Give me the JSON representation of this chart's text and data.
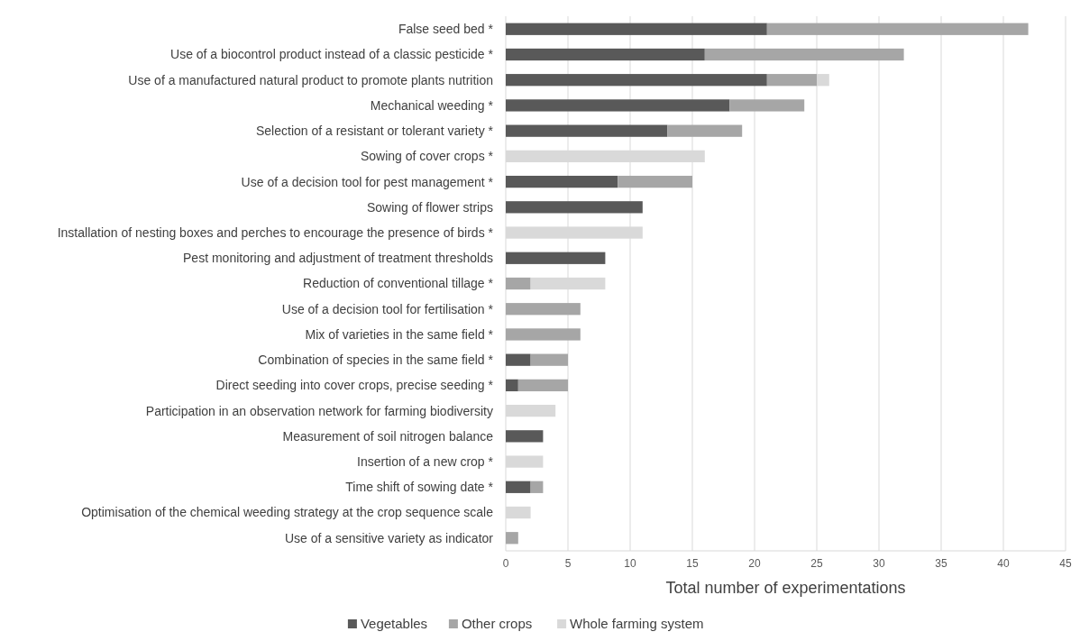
{
  "chart_data": {
    "type": "bar",
    "orientation": "horizontal",
    "stacked": true,
    "xlabel": "Total number of experimentations",
    "categories": [
      "False seed bed *",
      "Use of a biocontrol product instead of a classic pesticide *",
      "Use of a manufactured natural product to promote plants nutrition",
      "Mechanical weeding *",
      "Selection of a resistant or tolerant variety *",
      "Sowing of cover crops *",
      "Use of a decision tool for pest management *",
      "Sowing of flower strips",
      "Installation of nesting boxes and perches to encourage the presence of birds *",
      "Pest monitoring and adjustment of treatment thresholds",
      "Reduction of conventional tillage *",
      "Use of a decision tool for fertilisation *",
      "Mix of varieties in the same field *",
      "Combination of species in the same field *",
      "Direct seeding into cover crops, precise seeding *",
      "Participation in an observation network for farming biodiversity",
      "Measurement of soil nitrogen balance",
      "Insertion of a new crop *",
      "Time shift of sowing date *",
      "Optimisation of the chemical weeding strategy at the crop sequence scale",
      "Use of a sensitive variety as indicator"
    ],
    "series": [
      {
        "name": "Vegetables",
        "color": "#595959",
        "values": [
          21,
          16,
          21,
          18,
          13,
          null,
          9,
          11,
          null,
          8,
          null,
          null,
          null,
          2,
          1,
          null,
          3,
          null,
          2,
          null,
          null
        ]
      },
      {
        "name": "Other crops",
        "color": "#a6a6a6",
        "values": [
          21,
          16,
          4,
          6,
          6,
          null,
          6,
          null,
          null,
          null,
          2,
          6,
          6,
          3,
          4,
          null,
          null,
          null,
          1,
          null,
          1
        ]
      },
      {
        "name": "Whole farming system",
        "color": "#d9d9d9",
        "values": [
          null,
          null,
          1,
          null,
          null,
          16,
          null,
          null,
          11,
          null,
          6,
          null,
          null,
          null,
          null,
          4,
          null,
          3,
          null,
          2,
          null
        ]
      }
    ],
    "xlim": [
      0,
      45
    ],
    "xticks": [
      0,
      5,
      10,
      15,
      20,
      25,
      30,
      35,
      40,
      45
    ],
    "grid": "x",
    "legend": "bottom"
  }
}
